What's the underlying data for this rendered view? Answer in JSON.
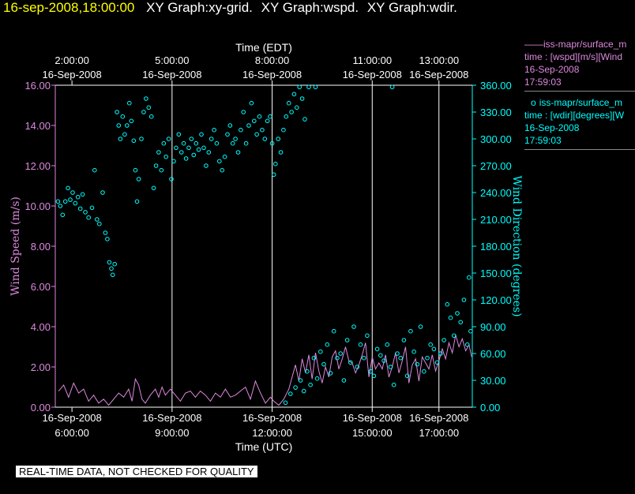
{
  "header": {
    "datetime": "16-sep-2008,18:00:00",
    "titles": [
      "XY Graph:xy-grid.",
      "XY Graph:wspd.",
      "XY Graph:wdir."
    ]
  },
  "colors": {
    "wspd": "#dd88dd",
    "wdir": "#00ffff",
    "axis": "#ffffff",
    "bg": "#000000",
    "grid": "#ffffff"
  },
  "legend": [
    {
      "symbol": "——",
      "lines": [
        "iss-mapr/surface_m",
        "time : [wspd][m/s][Wind",
        "16-Sep-2008",
        "17:59:03"
      ]
    },
    {
      "symbol": "o",
      "lines": [
        "iss-mapr/surface_m",
        "time : [wdir][degrees][W",
        "16-Sep-2008",
        "17:59:03"
      ]
    }
  ],
  "notice": "REAL-TIME DATA, NOT CHECKED FOR QUALITY",
  "chart_data": {
    "type": "line",
    "title": "XY Graph: wspd, wdir",
    "x_axis_bottom": {
      "label": "Time (UTC)",
      "range_hours": [
        5.5,
        18.0
      ],
      "ticks": [
        {
          "hour": 6,
          "date": "16-Sep-2008",
          "time": "6:00:00"
        },
        {
          "hour": 9,
          "date": "16-Sep-2008",
          "time": "9:00:00"
        },
        {
          "hour": 12,
          "date": "16-Sep-2008",
          "time": "12:00:00"
        },
        {
          "hour": 15,
          "date": "16-Sep-2008",
          "time": "15:00:00"
        },
        {
          "hour": 17,
          "date": "16-Sep-2008",
          "time": "17:00:00"
        }
      ]
    },
    "x_axis_top": {
      "label": "Time (EDT)",
      "ticks": [
        {
          "hour": 6,
          "date": "16-Sep-2008",
          "time": "2:00:00"
        },
        {
          "hour": 9,
          "date": "16-Sep-2008",
          "time": "5:00:00"
        },
        {
          "hour": 12,
          "date": "16-Sep-2008",
          "time": "8:00:00"
        },
        {
          "hour": 15,
          "date": "16-Sep-2008",
          "time": "11:00:00"
        },
        {
          "hour": 17,
          "date": "16-Sep-2008",
          "time": "13:00:00"
        }
      ]
    },
    "grid_hours": [
      9,
      12,
      15,
      17
    ],
    "y_left": {
      "label": "Wind Speed (m/s)",
      "ylim": [
        0,
        16
      ],
      "ticks": [
        "0.00",
        "2.00",
        "4.00",
        "6.00",
        "8.00",
        "10.00",
        "12.00",
        "14.00",
        "16.00"
      ]
    },
    "y_right": {
      "label": "Wind Direction (degrees)",
      "ylim": [
        0,
        360
      ],
      "ticks": [
        "0.00",
        "30.00",
        "60.00",
        "90.00",
        "120.00",
        "150.00",
        "180.00",
        "210.00",
        "240.00",
        "270.00",
        "300.00",
        "330.00",
        "360.00"
      ]
    },
    "series": [
      {
        "name": "wspd",
        "style": "line",
        "points": [
          [
            5.6,
            0.8
          ],
          [
            5.75,
            1.1
          ],
          [
            5.9,
            0.5
          ],
          [
            6.05,
            1.2
          ],
          [
            6.2,
            0.7
          ],
          [
            6.35,
            0.9
          ],
          [
            6.5,
            0.3
          ],
          [
            6.65,
            0.6
          ],
          [
            6.8,
            0.2
          ],
          [
            6.95,
            0.4
          ],
          [
            7.1,
            0.1
          ],
          [
            7.25,
            0.4
          ],
          [
            7.4,
            0.7
          ],
          [
            7.55,
            0.5
          ],
          [
            7.7,
            0.9
          ],
          [
            7.8,
            0.3
          ],
          [
            7.9,
            1.4
          ],
          [
            8.0,
            1.1
          ],
          [
            8.1,
            0.4
          ],
          [
            8.2,
            0.2
          ],
          [
            8.35,
            0.6
          ],
          [
            8.5,
            0.9
          ],
          [
            8.6,
            0.5
          ],
          [
            8.7,
            1.0
          ],
          [
            8.8,
            0.6
          ],
          [
            8.95,
            0.9
          ],
          [
            9.1,
            0.6
          ],
          [
            9.25,
            0.3
          ],
          [
            9.4,
            0.7
          ],
          [
            9.55,
            0.8
          ],
          [
            9.7,
            0.5
          ],
          [
            9.85,
            0.8
          ],
          [
            10.0,
            0.6
          ],
          [
            10.15,
            0.3
          ],
          [
            10.3,
            0.7
          ],
          [
            10.45,
            0.5
          ],
          [
            10.6,
            0.9
          ],
          [
            10.75,
            0.5
          ],
          [
            10.9,
            0.6
          ],
          [
            11.05,
            0.8
          ],
          [
            11.2,
            1.0
          ],
          [
            11.35,
            0.4
          ],
          [
            11.5,
            1.3
          ],
          [
            11.65,
            0.7
          ],
          [
            11.8,
            0.2
          ],
          [
            11.95,
            0.5
          ],
          [
            12.05,
            0.3
          ],
          [
            12.2,
            0.1
          ],
          [
            12.35,
            0.4
          ],
          [
            12.5,
            0.9
          ],
          [
            12.6,
            1.5
          ],
          [
            12.7,
            2.1
          ],
          [
            12.8,
            1.3
          ],
          [
            12.9,
            2.4
          ],
          [
            13.0,
            1.7
          ],
          [
            13.1,
            2.6
          ],
          [
            13.2,
            1.4
          ],
          [
            13.3,
            2.7
          ],
          [
            13.4,
            1.8
          ],
          [
            13.5,
            1.2
          ],
          [
            13.6,
            2.0
          ],
          [
            13.7,
            1.5
          ],
          [
            13.8,
            2.5
          ],
          [
            13.9,
            2.8
          ],
          [
            14.0,
            1.9
          ],
          [
            14.1,
            2.4
          ],
          [
            14.2,
            3.0
          ],
          [
            14.3,
            2.3
          ],
          [
            14.4,
            2.2
          ],
          [
            14.5,
            1.7
          ],
          [
            14.6,
            2.1
          ],
          [
            14.7,
            2.6
          ],
          [
            14.8,
            3.2
          ],
          [
            14.9,
            1.5
          ],
          [
            15.0,
            2.5
          ],
          [
            15.1,
            1.9
          ],
          [
            15.2,
            2.2
          ],
          [
            15.3,
            1.9
          ],
          [
            15.4,
            2.6
          ],
          [
            15.5,
            1.5
          ],
          [
            15.6,
            2.0
          ],
          [
            15.7,
            2.7
          ],
          [
            15.8,
            1.7
          ],
          [
            15.9,
            2.3
          ],
          [
            16.0,
            3.0
          ],
          [
            16.1,
            1.2
          ],
          [
            16.2,
            2.1
          ],
          [
            16.3,
            2.4
          ],
          [
            16.4,
            1.3
          ],
          [
            16.5,
            2.5
          ],
          [
            16.6,
            2.2
          ],
          [
            16.7,
            1.9
          ],
          [
            16.8,
            2.6
          ],
          [
            16.9,
            1.8
          ],
          [
            17.0,
            2.3
          ],
          [
            17.1,
            2.9
          ],
          [
            17.2,
            2.4
          ],
          [
            17.3,
            3.2
          ],
          [
            17.4,
            2.7
          ],
          [
            17.5,
            3.6
          ],
          [
            17.6,
            3.0
          ],
          [
            17.7,
            3.4
          ],
          [
            17.8,
            2.8
          ],
          [
            17.9,
            3.1
          ],
          [
            17.98,
            2.5
          ]
        ]
      },
      {
        "name": "wdir",
        "style": "markers",
        "points": [
          [
            5.58,
            230
          ],
          [
            5.65,
            225
          ],
          [
            5.72,
            215
          ],
          [
            5.8,
            230
          ],
          [
            5.88,
            245
          ],
          [
            5.95,
            232
          ],
          [
            6.02,
            240
          ],
          [
            6.1,
            228
          ],
          [
            6.18,
            235
          ],
          [
            6.25,
            222
          ],
          [
            6.32,
            238
          ],
          [
            6.4,
            218
          ],
          [
            6.5,
            212
          ],
          [
            6.6,
            223
          ],
          [
            6.68,
            265
          ],
          [
            6.75,
            210
          ],
          [
            6.82,
            205
          ],
          [
            6.92,
            240
          ],
          [
            7.0,
            195
          ],
          [
            7.06,
            188
          ],
          [
            7.12,
            162
          ],
          [
            7.18,
            155
          ],
          [
            7.22,
            148
          ],
          [
            7.28,
            160
          ],
          [
            7.35,
            330
          ],
          [
            7.4,
            315
          ],
          [
            7.45,
            300
          ],
          [
            7.52,
            325
          ],
          [
            7.58,
            305
          ],
          [
            7.65,
            315
          ],
          [
            7.72,
            340
          ],
          [
            7.78,
            320
          ],
          [
            7.85,
            298
          ],
          [
            7.9,
            265
          ],
          [
            7.95,
            230
          ],
          [
            8.0,
            255
          ],
          [
            8.08,
            300
          ],
          [
            8.15,
            330
          ],
          [
            8.22,
            345
          ],
          [
            8.3,
            335
          ],
          [
            8.38,
            325
          ],
          [
            8.45,
            245
          ],
          [
            8.52,
            270
          ],
          [
            8.6,
            285
          ],
          [
            8.68,
            265
          ],
          [
            8.75,
            295
          ],
          [
            8.82,
            280
          ],
          [
            8.9,
            300
          ],
          [
            8.98,
            255
          ],
          [
            9.05,
            275
          ],
          [
            9.12,
            290
          ],
          [
            9.2,
            305
          ],
          [
            9.28,
            285
          ],
          [
            9.35,
            295
          ],
          [
            9.42,
            278
          ],
          [
            9.5,
            290
          ],
          [
            9.58,
            300
          ],
          [
            9.65,
            282
          ],
          [
            9.72,
            295
          ],
          [
            9.8,
            288
          ],
          [
            9.88,
            305
          ],
          [
            9.95,
            290
          ],
          [
            10.02,
            270
          ],
          [
            10.1,
            285
          ],
          [
            10.18,
            300
          ],
          [
            10.26,
            310
          ],
          [
            10.34,
            295
          ],
          [
            10.42,
            275
          ],
          [
            10.5,
            265
          ],
          [
            10.58,
            280
          ],
          [
            10.66,
            305
          ],
          [
            10.74,
            315
          ],
          [
            10.82,
            295
          ],
          [
            10.9,
            300
          ],
          [
            10.98,
            285
          ],
          [
            11.06,
            310
          ],
          [
            11.14,
            330
          ],
          [
            11.22,
            295
          ],
          [
            11.3,
            315
          ],
          [
            11.38,
            340
          ],
          [
            11.46,
            320
          ],
          [
            11.54,
            305
          ],
          [
            11.62,
            325
          ],
          [
            11.7,
            310
          ],
          [
            11.78,
            300
          ],
          [
            11.86,
            320
          ],
          [
            11.94,
            325
          ],
          [
            12.0,
            295
          ],
          [
            12.05,
            260
          ],
          [
            12.1,
            272
          ],
          [
            12.18,
            300
          ],
          [
            12.26,
            285
          ],
          [
            12.34,
            310
          ],
          [
            12.42,
            325
          ],
          [
            12.5,
            340
          ],
          [
            12.58,
            330
          ],
          [
            12.66,
            350
          ],
          [
            12.74,
            335
          ],
          [
            12.82,
            358
          ],
          [
            12.9,
            345
          ],
          [
            12.98,
            322
          ],
          [
            13.1,
            358
          ],
          [
            13.3,
            358
          ],
          [
            12.4,
            5
          ],
          [
            12.55,
            15
          ],
          [
            12.7,
            22
          ],
          [
            12.85,
            30
          ],
          [
            12.95,
            18
          ],
          [
            13.05,
            40
          ],
          [
            13.15,
            25
          ],
          [
            13.25,
            55
          ],
          [
            13.35,
            32
          ],
          [
            13.45,
            62
          ],
          [
            13.55,
            48
          ],
          [
            13.65,
            70
          ],
          [
            13.75,
            38
          ],
          [
            13.85,
            85
          ],
          [
            13.95,
            55
          ],
          [
            14.05,
            60
          ],
          [
            14.15,
            30
          ],
          [
            14.25,
            75
          ],
          [
            14.35,
            50
          ],
          [
            14.45,
            90
          ],
          [
            14.55,
            45
          ],
          [
            14.65,
            70
          ],
          [
            14.75,
            55
          ],
          [
            14.85,
            80
          ],
          [
            14.95,
            40
          ],
          [
            15.05,
            35
          ],
          [
            15.15,
            65
          ],
          [
            15.25,
            58
          ],
          [
            15.35,
            52
          ],
          [
            15.45,
            70
          ],
          [
            15.55,
            45
          ],
          [
            15.6,
            358
          ],
          [
            15.65,
            25
          ],
          [
            15.75,
            60
          ],
          [
            15.85,
            55
          ],
          [
            15.95,
            75
          ],
          [
            16.05,
            35
          ],
          [
            16.15,
            85
          ],
          [
            16.25,
            62
          ],
          [
            16.35,
            48
          ],
          [
            16.45,
            90
          ],
          [
            16.55,
            40
          ],
          [
            16.65,
            55
          ],
          [
            16.75,
            70
          ],
          [
            16.85,
            65
          ],
          [
            16.95,
            50
          ],
          [
            17.05,
            60
          ],
          [
            17.15,
            75
          ],
          [
            17.25,
            115
          ],
          [
            17.35,
            100
          ],
          [
            17.45,
            80
          ],
          [
            17.55,
            105
          ],
          [
            17.65,
            95
          ],
          [
            17.75,
            120
          ],
          [
            17.85,
            70
          ],
          [
            17.9,
            145
          ],
          [
            17.95,
            85
          ]
        ]
      }
    ]
  }
}
